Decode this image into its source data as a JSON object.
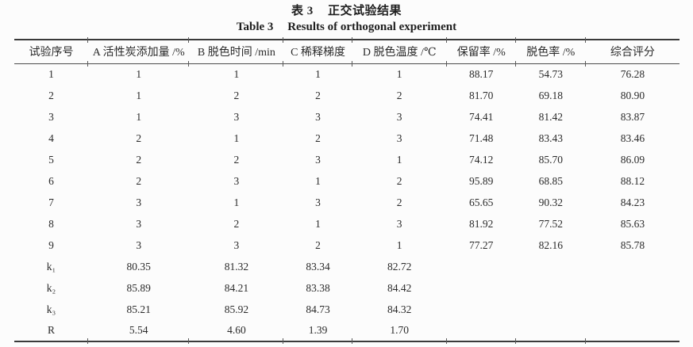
{
  "caption": {
    "zh_label": "表 3",
    "zh_text": "正交试验结果",
    "en_label": "Table 3",
    "en_text": "Results of orthogonal experiment"
  },
  "table": {
    "columns": [
      "试验序号",
      "A 活性炭添加量 /%",
      "B 脱色时间 /min",
      "C 稀释梯度",
      "D 脱色温度 /℃",
      "保留率 /%",
      "脱色率 /%",
      "综合评分"
    ],
    "rows": [
      [
        "1",
        "1",
        "1",
        "1",
        "1",
        "88.17",
        "54.73",
        "76.28"
      ],
      [
        "2",
        "1",
        "2",
        "2",
        "2",
        "81.70",
        "69.18",
        "80.90"
      ],
      [
        "3",
        "1",
        "3",
        "3",
        "3",
        "74.41",
        "81.42",
        "83.87"
      ],
      [
        "4",
        "2",
        "1",
        "2",
        "3",
        "71.48",
        "83.43",
        "83.46"
      ],
      [
        "5",
        "2",
        "2",
        "3",
        "1",
        "74.12",
        "85.70",
        "86.09"
      ],
      [
        "6",
        "2",
        "3",
        "1",
        "2",
        "95.89",
        "68.85",
        "88.12"
      ],
      [
        "7",
        "3",
        "1",
        "3",
        "2",
        "65.65",
        "90.32",
        "84.23"
      ],
      [
        "8",
        "3",
        "2",
        "1",
        "3",
        "81.92",
        "77.52",
        "85.63"
      ],
      [
        "9",
        "3",
        "3",
        "2",
        "1",
        "77.27",
        "82.16",
        "85.78"
      ],
      [
        "k₁",
        "80.35",
        "81.32",
        "83.34",
        "82.72",
        "",
        "",
        ""
      ],
      [
        "k₂",
        "85.89",
        "84.21",
        "83.38",
        "84.42",
        "",
        "",
        ""
      ],
      [
        "k₃",
        "85.21",
        "85.92",
        "84.73",
        "84.32",
        "",
        "",
        ""
      ],
      [
        "R",
        "5.54",
        "4.60",
        "1.39",
        "1.70",
        "",
        "",
        ""
      ]
    ],
    "column_widths_pct": [
      11.1,
      15.2,
      14.2,
      10.3,
      14.2,
      10.4,
      10.5,
      14.1
    ]
  }
}
